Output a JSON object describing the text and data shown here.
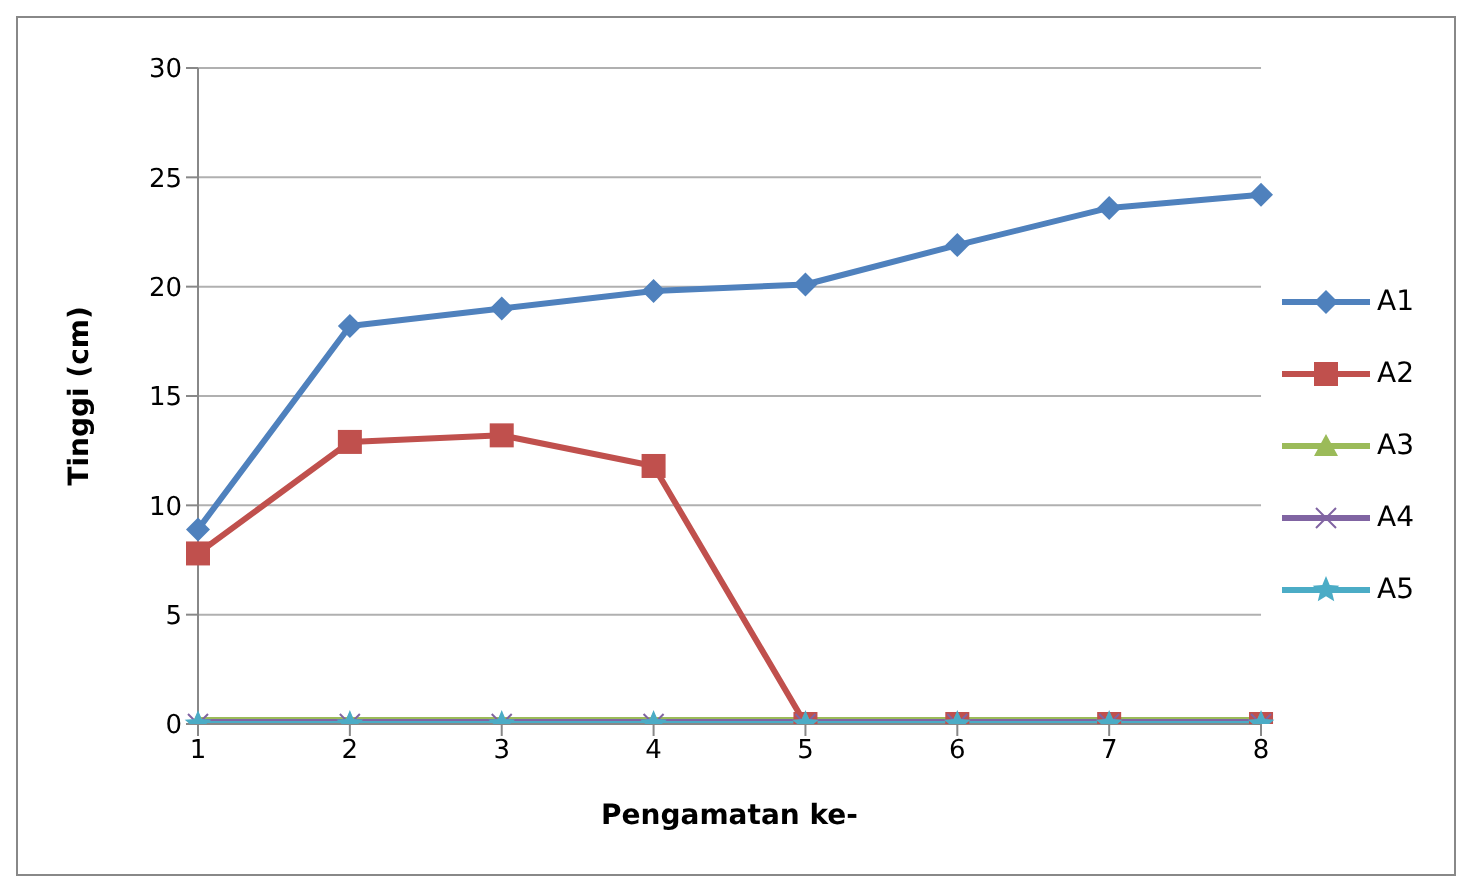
{
  "chart_data": {
    "type": "line",
    "xlabel": "Pengamatan ke-",
    "ylabel": "Tinggi (cm)",
    "categories": [
      "1",
      "2",
      "3",
      "4",
      "5",
      "6",
      "7",
      "8"
    ],
    "ylim": [
      0,
      30
    ],
    "yticks": [
      0,
      5,
      10,
      15,
      20,
      25,
      30
    ],
    "grid": "y",
    "legend": "right",
    "series": [
      {
        "name": "A1",
        "color": "#4f81bd",
        "marker": "diamond",
        "values": [
          8.9,
          18.2,
          19.0,
          19.8,
          20.1,
          21.9,
          23.6,
          24.2
        ]
      },
      {
        "name": "A2",
        "color": "#c0504d",
        "marker": "square",
        "values": [
          7.8,
          12.9,
          13.2,
          11.8,
          0,
          0,
          0,
          0
        ]
      },
      {
        "name": "A3",
        "color": "#9bbb59",
        "marker": "triangle",
        "values": [
          0,
          0,
          0,
          0,
          0,
          0,
          0,
          0
        ]
      },
      {
        "name": "A4",
        "color": "#8064a2",
        "marker": "cross",
        "values": [
          0,
          0,
          0,
          0,
          0,
          0,
          0,
          0
        ]
      },
      {
        "name": "A5",
        "color": "#4bacc6",
        "marker": "star",
        "values": [
          0,
          0,
          0,
          0,
          0,
          0,
          0,
          0
        ]
      }
    ]
  }
}
